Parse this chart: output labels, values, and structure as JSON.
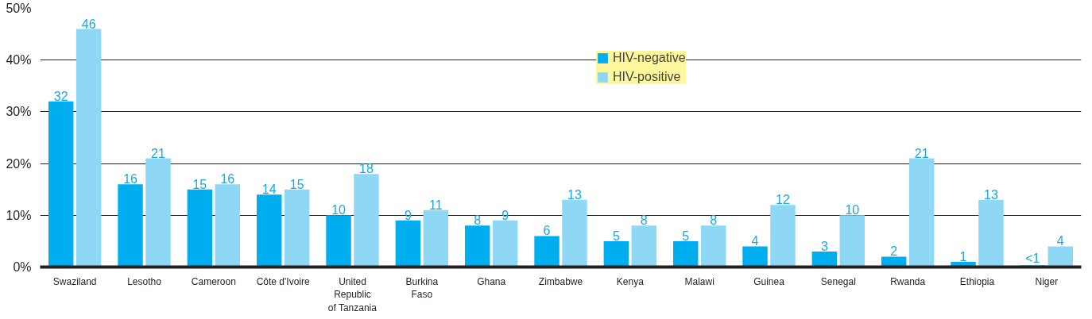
{
  "chart_data": {
    "type": "bar",
    "categories": [
      "Swaziland",
      "Lesotho",
      "Cameroon",
      "Côte d'Ivoire",
      "United\nRepublic\nof Tanzania",
      "Burkina\nFaso",
      "Ghana",
      "Zimbabwe",
      "Kenya",
      "Malawi",
      "Guinea",
      "Senegal",
      "Rwanda",
      "Ethiopia",
      "Niger"
    ],
    "series": [
      {
        "name": "HIV-negative",
        "color": "#00aeef",
        "values": [
          32,
          16,
          15,
          14,
          10,
          9,
          8,
          6,
          5,
          5,
          4,
          3,
          2,
          1,
          0.3
        ],
        "value_labels": [
          "32",
          "16",
          "15",
          "14",
          "10",
          "9",
          "8",
          "6",
          "5",
          "5",
          "4",
          "3",
          "2",
          "1",
          "<1"
        ]
      },
      {
        "name": "HIV-positive",
        "color": "#8fd8f5",
        "values": [
          46,
          21,
          16,
          15,
          18,
          11,
          9,
          13,
          8,
          8,
          12,
          10,
          21,
          13,
          4
        ],
        "value_labels": [
          "46",
          "21",
          "16",
          "15",
          "18",
          "11",
          "9",
          "13",
          "8",
          "8",
          "12",
          "10",
          "21",
          "13",
          "4"
        ]
      }
    ],
    "ylim": [
      0,
      50
    ],
    "yticks": [
      {
        "value": 0,
        "label": "0%"
      },
      {
        "value": 10,
        "label": "10%"
      },
      {
        "value": 20,
        "label": "20%"
      },
      {
        "value": 30,
        "label": "30%"
      },
      {
        "value": 40,
        "label": "40%"
      },
      {
        "value": 50,
        "label": "50%"
      }
    ],
    "grid": "y",
    "legend": "top"
  }
}
